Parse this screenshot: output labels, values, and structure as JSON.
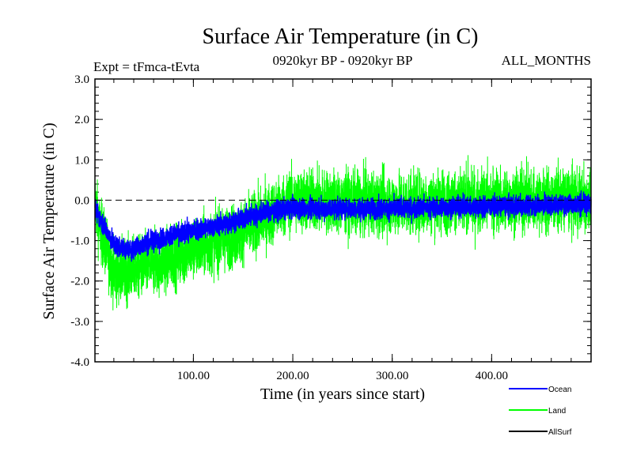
{
  "chart_data": {
    "type": "line",
    "title": "Surface Air Temperature (in C)",
    "subtitle_left": "Expt = tFmca-tEvta",
    "subtitle_center": "0920kyr BP - 0920kyr BP",
    "subtitle_right": "ALL_MONTHS",
    "xlabel": "Time (in years since start)",
    "ylabel": "Surface Air Temperature (in C)",
    "xlim": [
      1,
      500
    ],
    "ylim": [
      -4.0,
      3.0
    ],
    "xticks": [
      100,
      200,
      300,
      400
    ],
    "xtick_labels": [
      "100.00",
      "200.00",
      "300.00",
      "400.00"
    ],
    "yticks": [
      -4,
      -3,
      -2,
      -1,
      0,
      1,
      2,
      3
    ],
    "ytick_labels": [
      "-4.0",
      "-3.0",
      "-2.0",
      "-1.0",
      "0.0",
      "1.0",
      "2.0",
      "3.0"
    ],
    "reference_line": {
      "y": 0.0,
      "style": "dashed"
    },
    "legend_position": "bottom-right",
    "series": [
      {
        "name": "Ocean",
        "color": "#0000ff",
        "trend": [
          [
            1,
            -0.2
          ],
          [
            5,
            -0.4
          ],
          [
            20,
            -1.1
          ],
          [
            35,
            -1.25
          ],
          [
            60,
            -1.0
          ],
          [
            90,
            -0.8
          ],
          [
            130,
            -0.6
          ],
          [
            170,
            -0.3
          ],
          [
            200,
            -0.2
          ],
          [
            300,
            -0.2
          ],
          [
            400,
            -0.15
          ],
          [
            500,
            -0.1
          ]
        ],
        "noise": 0.18
      },
      {
        "name": "Land",
        "color": "#00ff00",
        "trend": [
          [
            1,
            0.0
          ],
          [
            5,
            -0.6
          ],
          [
            20,
            -1.8
          ],
          [
            40,
            -1.7
          ],
          [
            70,
            -1.5
          ],
          [
            100,
            -1.2
          ],
          [
            140,
            -0.9
          ],
          [
            180,
            -0.3
          ],
          [
            200,
            0.0
          ],
          [
            300,
            -0.1
          ],
          [
            400,
            0.0
          ],
          [
            500,
            0.0
          ]
        ],
        "noise": 0.55
      },
      {
        "name": "AllSurf",
        "color": "#000000",
        "trend": [],
        "noise": 0
      }
    ]
  }
}
